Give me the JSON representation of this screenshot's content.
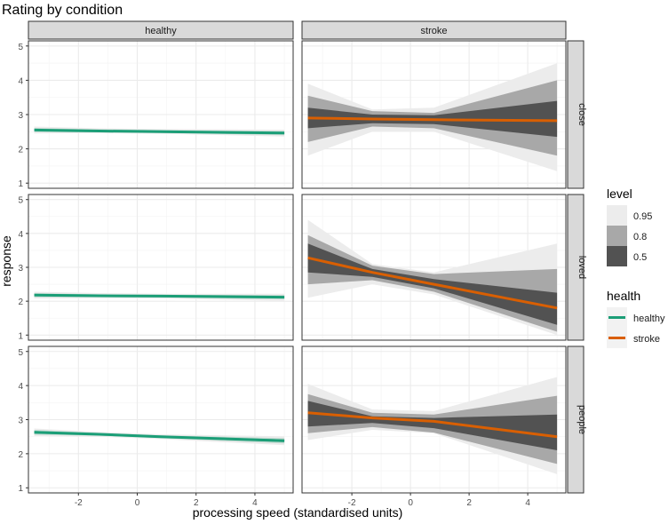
{
  "chart_data": {
    "type": "line",
    "title": "Rating by condition",
    "xlabel": "processing speed (standardised units)",
    "ylabel": "response",
    "xlim": [
      -3.7,
      5.3
    ],
    "ylim": [
      0.85,
      5.15
    ],
    "x_ticks": [
      -2,
      0,
      2,
      4
    ],
    "x_tick_labels": [
      "-2",
      "0",
      "2",
      "4"
    ],
    "y_ticks": [
      1,
      2,
      3,
      4,
      5
    ],
    "y_tick_labels": [
      "1",
      "2",
      "3",
      "4",
      "5"
    ],
    "grid": true,
    "columns": [
      "healthy",
      "stroke"
    ],
    "rows": [
      "close",
      "loved",
      "people"
    ],
    "legend_position": "right",
    "legends": {
      "level": {
        "title": "level",
        "entries": [
          "0.95",
          "0.8",
          "0.5"
        ],
        "colors": [
          "#ececec",
          "#a8a8a8",
          "#525252"
        ]
      },
      "health": {
        "title": "health",
        "entries": [
          "healthy",
          "stroke"
        ],
        "colors": [
          "#1b9e77",
          "#d95f02"
        ]
      }
    },
    "panels": [
      {
        "column": "healthy",
        "row": "close",
        "x": [
          -3.5,
          -1.3,
          0.8,
          5.0
        ],
        "fit": [
          2.55,
          2.52,
          2.5,
          2.46
        ],
        "band95_lo": [
          2.45,
          2.46,
          2.44,
          2.36
        ],
        "band95_hi": [
          2.65,
          2.6,
          2.58,
          2.56
        ],
        "band80_lo": [
          2.49,
          2.48,
          2.47,
          2.4
        ],
        "band80_hi": [
          2.61,
          2.57,
          2.55,
          2.52
        ],
        "band50_lo": [
          2.52,
          2.5,
          2.49,
          2.43
        ],
        "band50_hi": [
          2.58,
          2.54,
          2.52,
          2.49
        ]
      },
      {
        "column": "stroke",
        "row": "close",
        "x": [
          -3.5,
          -1.3,
          0.8,
          5.0
        ],
        "fit": [
          2.9,
          2.87,
          2.85,
          2.82
        ],
        "band95_lo": [
          1.8,
          2.5,
          2.5,
          1.35
        ],
        "band95_hi": [
          3.9,
          3.15,
          3.2,
          4.5
        ],
        "band80_lo": [
          2.2,
          2.65,
          2.6,
          1.8
        ],
        "band80_hi": [
          3.55,
          3.1,
          3.05,
          4.0
        ],
        "band50_lo": [
          2.6,
          2.75,
          2.72,
          2.35
        ],
        "band50_hi": [
          3.2,
          3.0,
          2.98,
          3.4
        ]
      },
      {
        "column": "healthy",
        "row": "loved",
        "x": [
          -3.5,
          -1.3,
          0.8,
          5.0
        ],
        "fit": [
          2.18,
          2.16,
          2.15,
          2.12
        ],
        "band95_lo": [
          2.08,
          2.09,
          2.08,
          2.01
        ],
        "band95_hi": [
          2.28,
          2.24,
          2.22,
          2.22
        ],
        "band80_lo": [
          2.12,
          2.12,
          2.11,
          2.06
        ],
        "band80_hi": [
          2.24,
          2.2,
          2.19,
          2.18
        ],
        "band50_lo": [
          2.15,
          2.14,
          2.13,
          2.09
        ],
        "band50_hi": [
          2.21,
          2.18,
          2.17,
          2.15
        ]
      },
      {
        "column": "stroke",
        "row": "loved",
        "x": [
          -3.5,
          -1.3,
          0.8,
          5.0
        ],
        "fit": [
          3.28,
          2.85,
          2.5,
          1.8
        ],
        "band95_lo": [
          2.1,
          2.5,
          2.2,
          1.0
        ],
        "band95_hi": [
          4.4,
          3.1,
          2.85,
          3.7
        ],
        "band80_lo": [
          2.5,
          2.62,
          2.28,
          1.1
        ],
        "band80_hi": [
          3.95,
          3.05,
          2.8,
          2.95
        ],
        "band50_lo": [
          2.85,
          2.72,
          2.38,
          1.3
        ],
        "band50_hi": [
          3.7,
          2.95,
          2.65,
          2.25
        ]
      },
      {
        "column": "healthy",
        "row": "people",
        "x": [
          -3.5,
          -1.3,
          0.8,
          5.0
        ],
        "fit": [
          2.63,
          2.57,
          2.5,
          2.38
        ],
        "band95_lo": [
          2.52,
          2.5,
          2.43,
          2.25
        ],
        "band95_hi": [
          2.74,
          2.64,
          2.57,
          2.51
        ],
        "band80_lo": [
          2.56,
          2.53,
          2.46,
          2.3
        ],
        "band80_hi": [
          2.7,
          2.61,
          2.54,
          2.46
        ],
        "band50_lo": [
          2.59,
          2.55,
          2.48,
          2.34
        ],
        "band50_hi": [
          2.67,
          2.59,
          2.52,
          2.42
        ]
      },
      {
        "column": "stroke",
        "row": "people",
        "x": [
          -3.5,
          -1.3,
          0.8,
          5.0
        ],
        "fit": [
          3.2,
          3.05,
          2.95,
          2.5
        ],
        "band95_lo": [
          2.4,
          2.7,
          2.6,
          1.4
        ],
        "band95_hi": [
          4.05,
          3.3,
          3.25,
          4.25
        ],
        "band80_lo": [
          2.6,
          2.78,
          2.62,
          1.7
        ],
        "band80_hi": [
          3.75,
          3.2,
          3.15,
          3.7
        ],
        "band50_lo": [
          2.8,
          2.9,
          2.75,
          2.1
        ],
        "band50_hi": [
          3.55,
          3.1,
          3.05,
          3.15
        ]
      }
    ]
  }
}
